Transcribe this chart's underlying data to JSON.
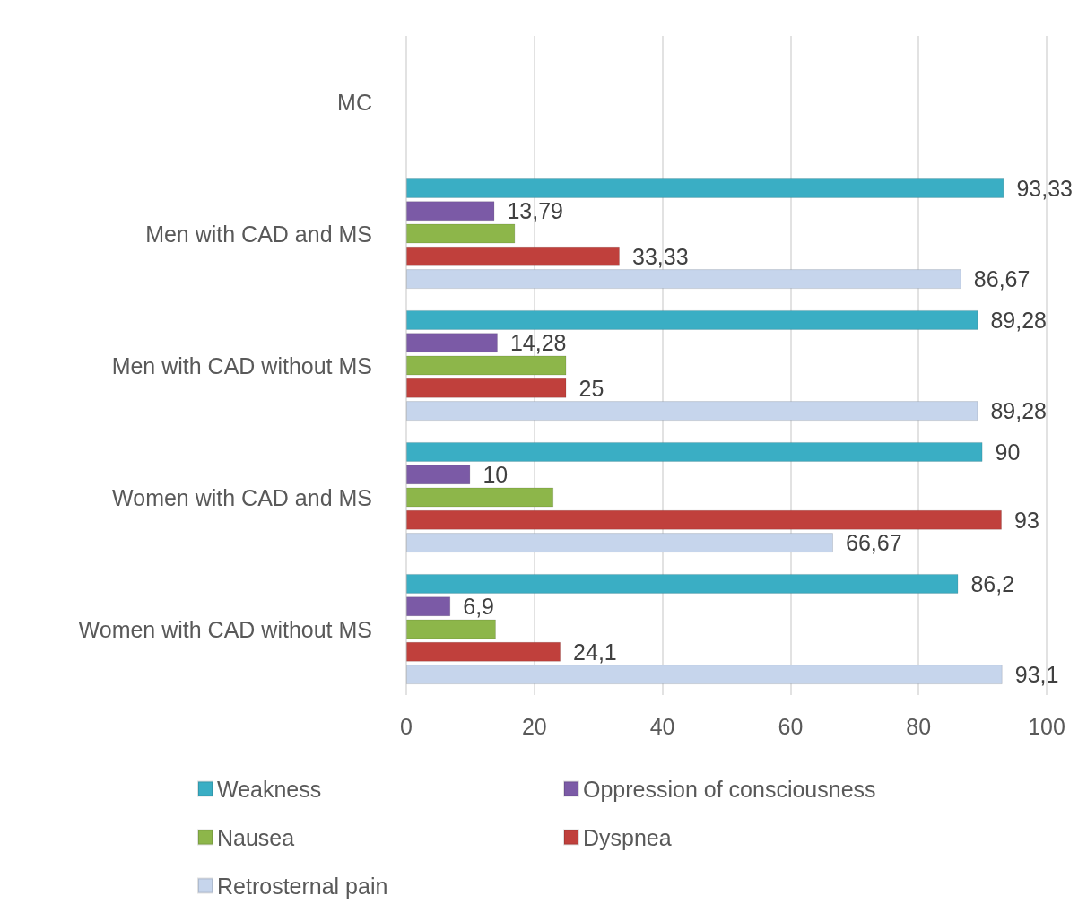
{
  "chart_data": {
    "type": "bar",
    "orientation": "horizontal",
    "categories": [
      "MC",
      "Men with CAD and MS",
      "Men with CAD without MS",
      "Women with CAD and MS",
      "Women with CAD without MS"
    ],
    "series": [
      {
        "name": "Weakness",
        "color": "#3aaec4",
        "values": [
          null,
          93.33,
          89.28,
          90,
          86.2
        ],
        "value_labels": [
          null,
          "93,33",
          "89,28",
          "90",
          "86,2"
        ]
      },
      {
        "name": "Oppression of consciousness",
        "color": "#7b5aa6",
        "values": [
          null,
          13.79,
          14.28,
          10,
          6.9
        ],
        "value_labels": [
          null,
          "13,79",
          "14,28",
          "10",
          "6,9"
        ]
      },
      {
        "name": "Nausea",
        "color": "#8db64a",
        "values": [
          null,
          17,
          25,
          23,
          14
        ]
      },
      {
        "name": "Dyspnea",
        "color": "#c0403c",
        "values": [
          null,
          33.33,
          25,
          93,
          24.1
        ],
        "value_labels": [
          null,
          "33,33",
          "25",
          "93",
          "24,1"
        ]
      },
      {
        "name": "Retrosternal pain",
        "color": "#c6d5ec",
        "values": [
          null,
          86.67,
          89.28,
          66.67,
          93.1
        ],
        "value_labels": [
          null,
          "86,67",
          "89,28",
          "66,67",
          "93,1"
        ]
      }
    ],
    "xlim": [
      0,
      100
    ],
    "xticks": [
      0,
      20,
      40,
      60,
      80,
      100
    ],
    "grid": "x",
    "legend": "bottom"
  }
}
